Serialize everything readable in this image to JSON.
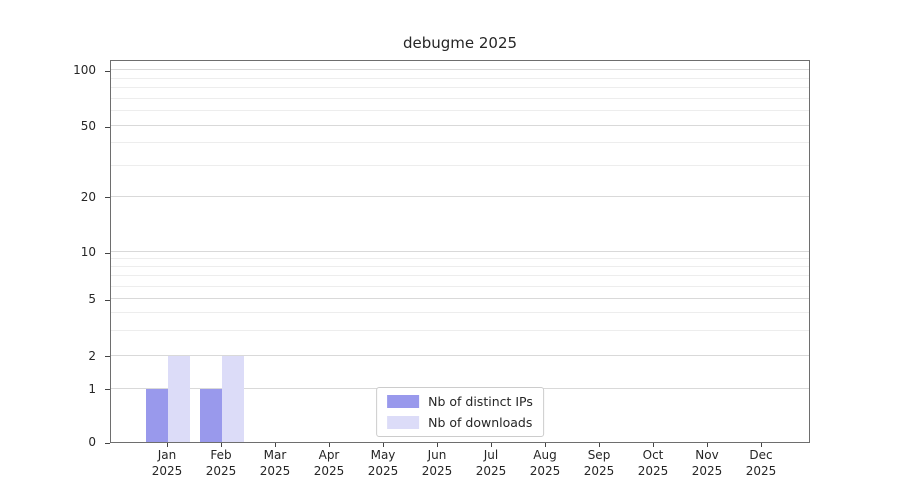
{
  "chart_data": {
    "type": "bar",
    "title": "debugme 2025",
    "categories": [
      "Jan",
      "Feb",
      "Mar",
      "Apr",
      "May",
      "Jun",
      "Jul",
      "Aug",
      "Sep",
      "Oct",
      "Nov",
      "Dec"
    ],
    "category_year": "2025",
    "series": [
      {
        "name": "Nb of distinct IPs",
        "color": "#9999ec",
        "values": [
          1,
          1,
          0,
          0,
          0,
          0,
          0,
          0,
          0,
          0,
          0,
          0
        ]
      },
      {
        "name": "Nb of downloads",
        "color": "#dcdcf8",
        "values": [
          2,
          2,
          0,
          0,
          0,
          0,
          0,
          0,
          0,
          0,
          0,
          0
        ]
      }
    ],
    "yticks": [
      0,
      1,
      2,
      5,
      10,
      20,
      50,
      100
    ],
    "minor_yticks": [
      3,
      4,
      6,
      7,
      8,
      9,
      30,
      40,
      60,
      70,
      80,
      90
    ],
    "ylim": [
      0,
      110
    ],
    "yscale": "log-like",
    "grid": "horizontal",
    "legend_position": "bottom-center",
    "xlabel": "",
    "ylabel": ""
  }
}
